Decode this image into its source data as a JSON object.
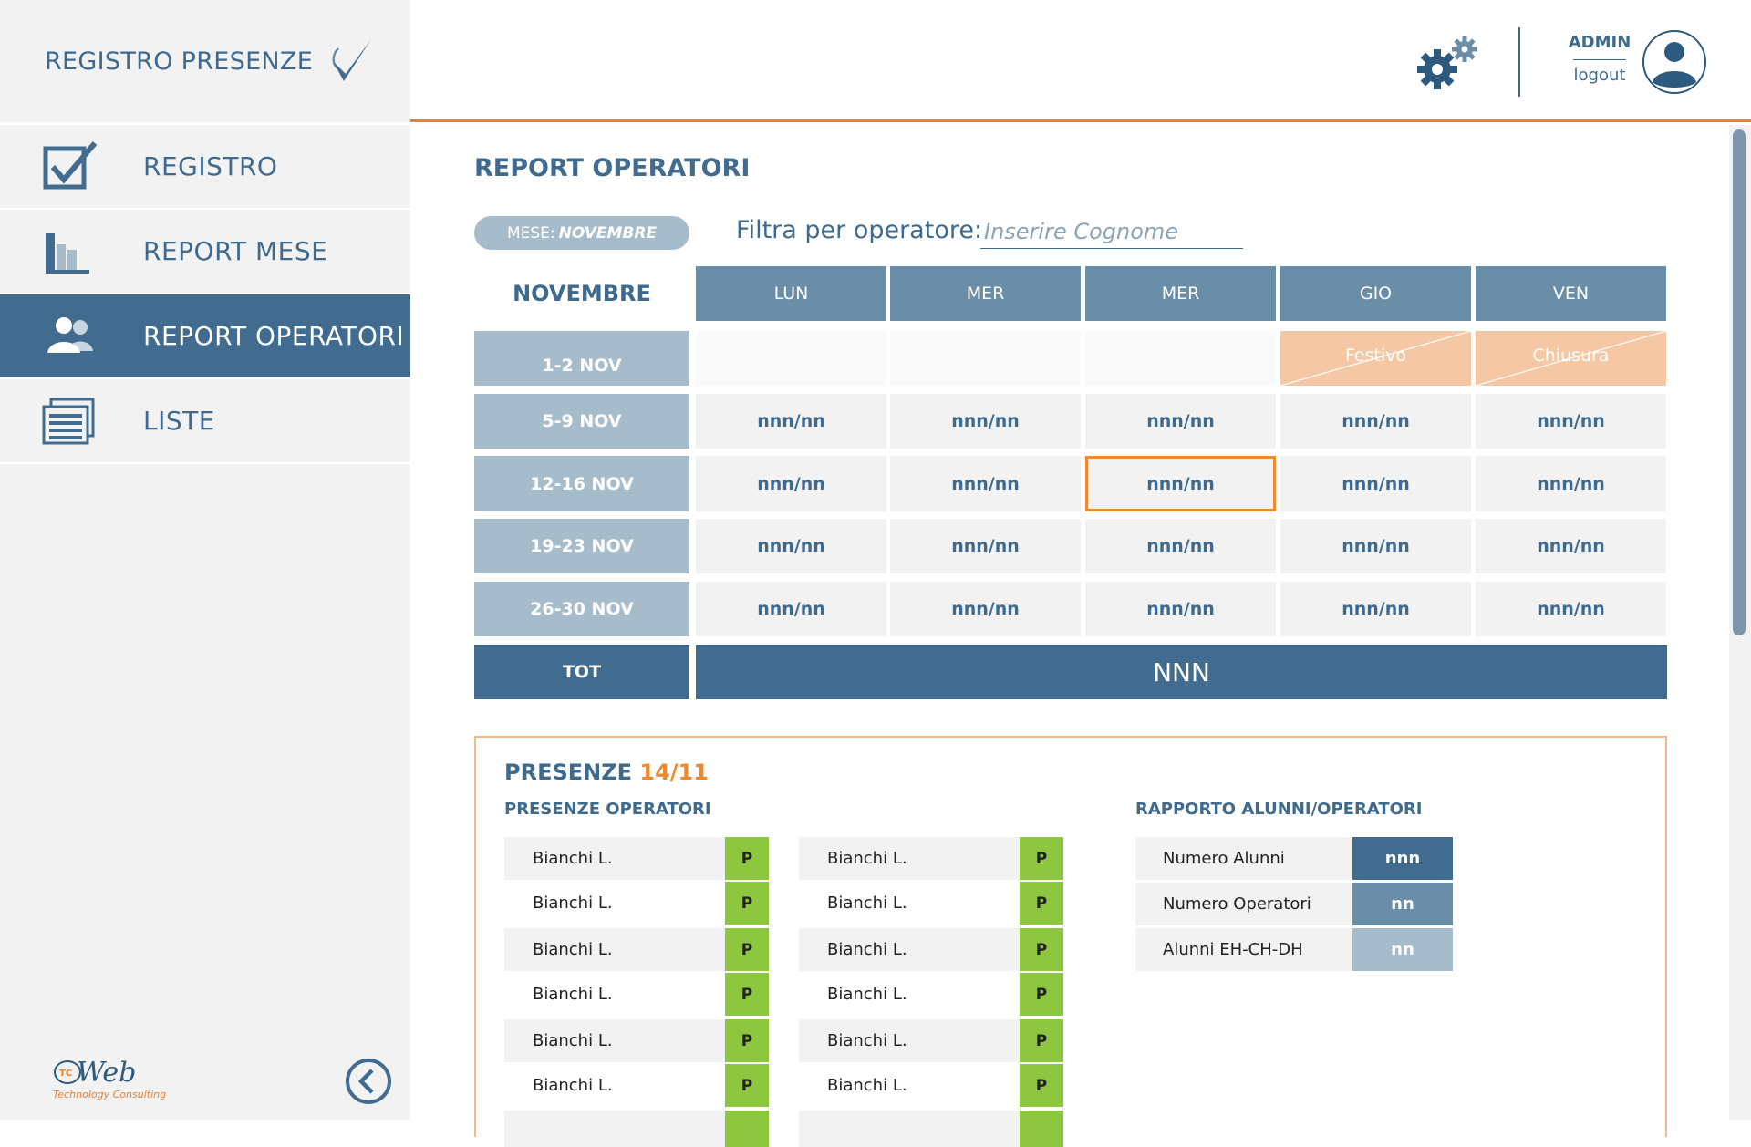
{
  "app": {
    "title": "REGISTRO PRESENZE"
  },
  "user": {
    "name": "ADMIN",
    "logout": "logout"
  },
  "sidebar": {
    "items": [
      {
        "label": "REGISTRO",
        "icon": "checkbox-icon",
        "active": false
      },
      {
        "label": "REPORT MESE",
        "icon": "bar-chart-icon",
        "active": false
      },
      {
        "label": "REPORT OPERATORI",
        "icon": "users-icon",
        "active": true
      },
      {
        "label": "LISTE",
        "icon": "list-icon",
        "active": false
      }
    ],
    "logo_text": "Technology Consulting",
    "logo_brand": "Web",
    "logo_badge": "TC"
  },
  "page": {
    "title_a": "REPORT",
    "title_b": "OPERATORI",
    "month_prefix": "MESE:",
    "month_value": "NOVEMBRE",
    "filter_label": "Filtra per operatore:",
    "filter_placeholder": "Inserire Cognome"
  },
  "calendar": {
    "month": "NOVEMBRE",
    "days": [
      "LUN",
      "MER",
      "MER",
      "GIO",
      "VEN"
    ],
    "weeks": [
      {
        "label": "1-2 NOV",
        "cells": [
          "",
          "",
          "",
          "Festivo",
          "Chiusura"
        ]
      },
      {
        "label": "5-9 NOV",
        "cells": [
          "nnn/nn",
          "nnn/nn",
          "nnn/nn",
          "nnn/nn",
          "nnn/nn"
        ]
      },
      {
        "label": "12-16 NOV",
        "cells": [
          "nnn/nn",
          "nnn/nn",
          "nnn/nn",
          "nnn/nn",
          "nnn/nn"
        ]
      },
      {
        "label": "19-23 NOV",
        "cells": [
          "nnn/nn",
          "nnn/nn",
          "nnn/nn",
          "nnn/nn",
          "nnn/nn"
        ]
      },
      {
        "label": "26-30 NOV",
        "cells": [
          "nnn/nn",
          "nnn/nn",
          "nnn/nn",
          "nnn/nn",
          "nnn/nn"
        ]
      }
    ],
    "total_label": "TOT",
    "total_value": "NNN"
  },
  "presenze": {
    "title_a": "PRESENZE",
    "title_b": "14/11",
    "operators_title": "PRESENZE OPERATORI",
    "ratio_title": "RAPPORTO ALUNNI/OPERATORI",
    "col1": [
      {
        "name": "Bianchi L.",
        "status": "P"
      },
      {
        "name": "Bianchi L.",
        "status": "P"
      },
      {
        "name": "Bianchi L.",
        "status": "P"
      },
      {
        "name": "Bianchi L.",
        "status": "P"
      },
      {
        "name": "Bianchi L.",
        "status": "P"
      },
      {
        "name": "Bianchi L.",
        "status": "P"
      }
    ],
    "col2": [
      {
        "name": "Bianchi L.",
        "status": "P"
      },
      {
        "name": "Bianchi L.",
        "status": "P"
      },
      {
        "name": "Bianchi L.",
        "status": "P"
      },
      {
        "name": "Bianchi L.",
        "status": "P"
      },
      {
        "name": "Bianchi L.",
        "status": "P"
      },
      {
        "name": "Bianchi L.",
        "status": "P"
      }
    ],
    "ratio": [
      {
        "label": "Numero Alunni",
        "value": "nnn",
        "color": "#416c8f"
      },
      {
        "label": "Numero Operatori",
        "value": "nn",
        "color": "#6a8ea8"
      },
      {
        "label": "Alunni EH-CH-DH",
        "value": "nn",
        "color": "#a7bccb"
      }
    ]
  },
  "colors": {
    "primary": "#416c8f",
    "header_cell": "#6a8ea8",
    "week_cell": "#a7bccb",
    "accent": "#ee7d2c",
    "special_day": "#f6c7a4",
    "present": "#8dc63f"
  }
}
